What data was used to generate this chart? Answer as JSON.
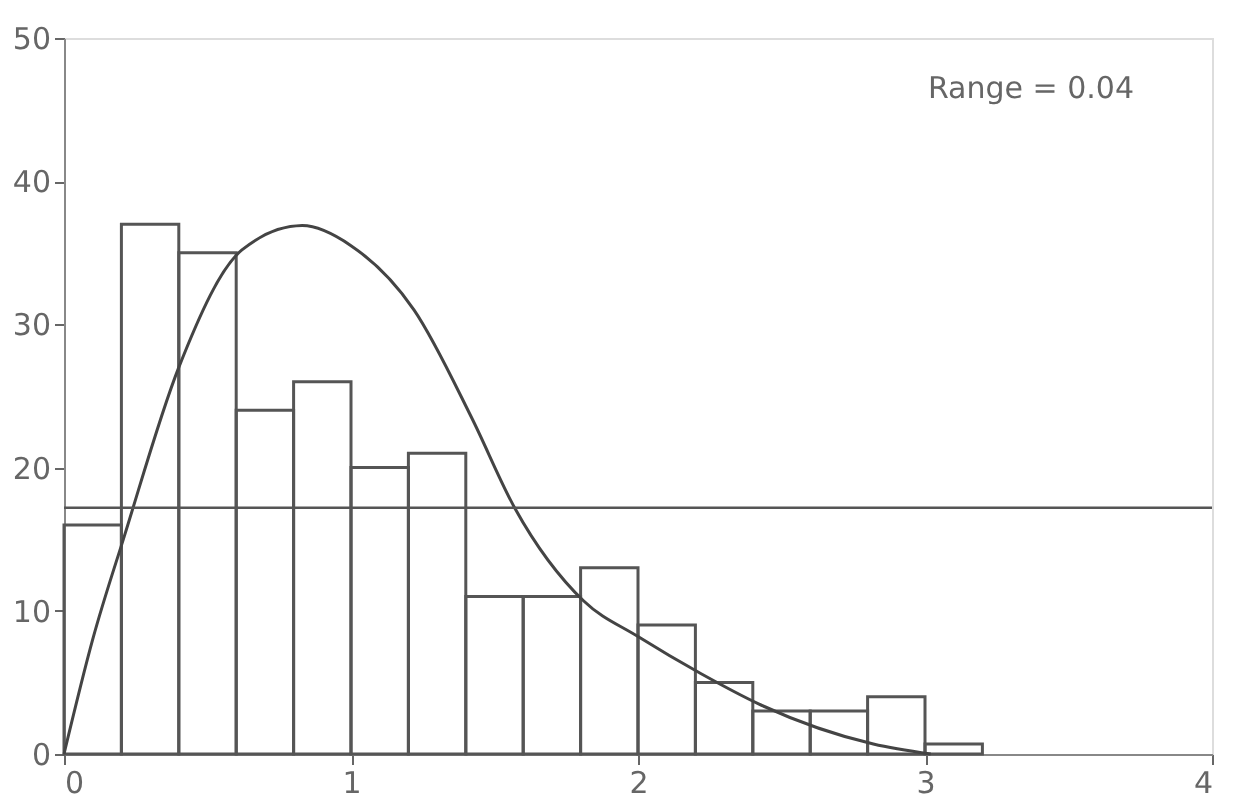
{
  "chart_data": {
    "type": "histogram",
    "bins": [
      0,
      0.2,
      0.4,
      0.6,
      0.8,
      1.0,
      1.2,
      1.4,
      1.6,
      1.8,
      2.0,
      2.2,
      2.4,
      2.6,
      2.8,
      3.0,
      3.2
    ],
    "values": [
      16,
      37,
      35,
      24,
      26,
      20,
      21,
      11,
      11,
      13,
      9,
      5,
      3,
      3,
      4,
      0.7
    ],
    "color": "#555555",
    "series": [
      {
        "type": "line",
        "color": "#444444",
        "x": [
          0,
          0.1,
          0.21,
          0.4,
          0.62,
          0.83,
          1.0,
          1.22,
          1.42,
          1.57,
          1.81,
          2.0,
          2.22,
          2.42,
          2.82,
          3.02
        ],
        "values": [
          0,
          8,
          15.2,
          27,
          35.2,
          36.9,
          35.5,
          31,
          23.5,
          17.2,
          10.7,
          8.2,
          5.6,
          3.5,
          0.7,
          0
        ]
      }
    ],
    "ref_lines": [
      {
        "axis": "y",
        "value": 17.2,
        "color": "#555555"
      }
    ],
    "annotations": [
      "Range = 0.04"
    ],
    "xlim": [
      0,
      4
    ],
    "xticks": [
      0,
      1,
      2,
      3,
      4
    ],
    "ylim": [
      0,
      50
    ],
    "yticks": [
      0,
      10,
      20,
      30,
      40,
      50
    ],
    "grid": false
  }
}
